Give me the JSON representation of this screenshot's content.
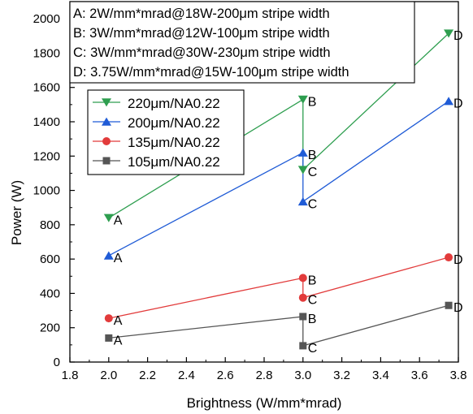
{
  "chart_data": {
    "type": "line",
    "xlabel": "Brightness (W/mm*mrad)",
    "ylabel": "Power (W)",
    "xlim": [
      1.8,
      3.8
    ],
    "ylim": [
      0,
      2100
    ],
    "x_ticks": [
      "1.8",
      "2.0",
      "2.2",
      "2.4",
      "2.6",
      "2.8",
      "3.0",
      "3.2",
      "3.4",
      "3.6",
      "3.8"
    ],
    "y_ticks": [
      "0",
      "200",
      "400",
      "600",
      "800",
      "1000",
      "1200",
      "1400",
      "1600",
      "1800",
      "2000"
    ],
    "legend_position": "upper-left",
    "annotations": [
      "A: 2W/mm*mrad@18W-200μm stripe width",
      "B: 3W/mm*mrad@12W-100μm stripe width",
      "C: 3W/mm*mrad@30W-230μm stripe width",
      "D: 3.75W/mm*mrad@15W-100μm stripe width"
    ],
    "series": [
      {
        "name": "220μm/NA0.22",
        "marker": "triangle-down",
        "color": "#2e9e4f",
        "points": [
          {
            "x": 2.0,
            "y": 840,
            "label": "A"
          },
          {
            "x": 3.0,
            "y": 1530,
            "label": "B"
          },
          {
            "x": 3.0,
            "y": 1120,
            "label": "C"
          },
          {
            "x": 3.75,
            "y": 1915,
            "label": "D"
          }
        ]
      },
      {
        "name": "200μm/NA0.22",
        "marker": "triangle-up",
        "color": "#1f5bd6",
        "points": [
          {
            "x": 2.0,
            "y": 620,
            "label": "A"
          },
          {
            "x": 3.0,
            "y": 1220,
            "label": "B"
          },
          {
            "x": 3.0,
            "y": 935,
            "label": "C"
          },
          {
            "x": 3.75,
            "y": 1520,
            "label": "D"
          }
        ]
      },
      {
        "name": "135μm/NA0.22",
        "marker": "circle",
        "color": "#e23b3b",
        "points": [
          {
            "x": 2.0,
            "y": 255,
            "label": "A"
          },
          {
            "x": 3.0,
            "y": 490,
            "label": "B"
          },
          {
            "x": 3.0,
            "y": 375,
            "label": "C"
          },
          {
            "x": 3.75,
            "y": 610,
            "label": "D"
          }
        ]
      },
      {
        "name": "105μm/NA0.22",
        "marker": "square",
        "color": "#555555",
        "points": [
          {
            "x": 2.0,
            "y": 140,
            "label": "A"
          },
          {
            "x": 3.0,
            "y": 265,
            "label": "B"
          },
          {
            "x": 3.0,
            "y": 95,
            "label": "C"
          },
          {
            "x": 3.75,
            "y": 330,
            "label": "D"
          }
        ]
      }
    ]
  }
}
